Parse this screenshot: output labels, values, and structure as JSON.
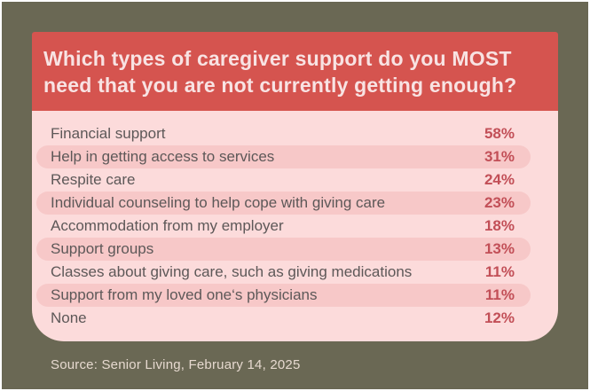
{
  "colors": {
    "background": "#6a6854",
    "header_bg": "#d5544f",
    "header_text": "#f8e3e3",
    "panel_bg": "#fcdbdb",
    "row_alt_bg": "#f7c8c8",
    "label_text": "#5d5858",
    "value_text": "#c24f57",
    "source_text": "#e6d9cf",
    "canvas_border": "#ffffff"
  },
  "header": {
    "title": "Which types of caregiver support do you MOST need that you are not currently getting enough?"
  },
  "chart_data": {
    "type": "table",
    "title": "Which types of caregiver support do you MOST need that you are not currently getting enough?",
    "categories": [
      "Financial support",
      "Help in getting access to services",
      "Respite care",
      "Individual counseling to help cope with giving care",
      "Accommodation from my employer",
      "Support groups",
      "Classes about giving care, such as giving medications",
      "Support from my loved one‘s physicians",
      "None"
    ],
    "values": [
      58,
      31,
      24,
      23,
      18,
      13,
      11,
      11,
      12
    ],
    "value_format": "percent",
    "legend": "none",
    "source": "Source: Senior Living, February 14, 2025"
  },
  "footer": {
    "source": "Source: Senior Living, February 14, 2025"
  }
}
